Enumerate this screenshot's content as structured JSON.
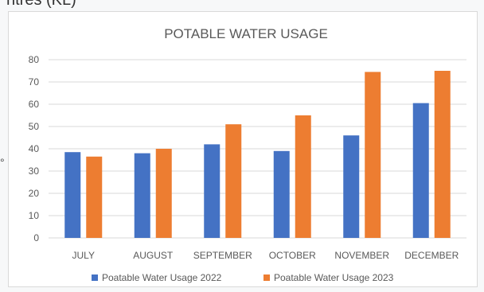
{
  "header_snippet": "ntres (KL)",
  "chart_data": {
    "type": "bar",
    "title": "POTABLE WATER USAGE",
    "categories": [
      "JULY",
      "AUGUST",
      "SEPTEMBER",
      "OCTOBER",
      "NOVEMBER",
      "DECEMBER"
    ],
    "series": [
      {
        "name": "Poatable Water Usage 2022",
        "color": "#4472C4",
        "values": [
          38.5,
          38,
          42,
          39,
          46,
          60.5
        ]
      },
      {
        "name": "Poatable Water Usage 2023",
        "color": "#ED7D31",
        "values": [
          36.5,
          40,
          51,
          55,
          74.5,
          75
        ]
      }
    ],
    "ylim": [
      0,
      80
    ],
    "yticks": [
      0,
      10,
      20,
      30,
      40,
      50,
      60,
      70,
      80
    ],
    "grid": true,
    "legend": "bottom"
  }
}
